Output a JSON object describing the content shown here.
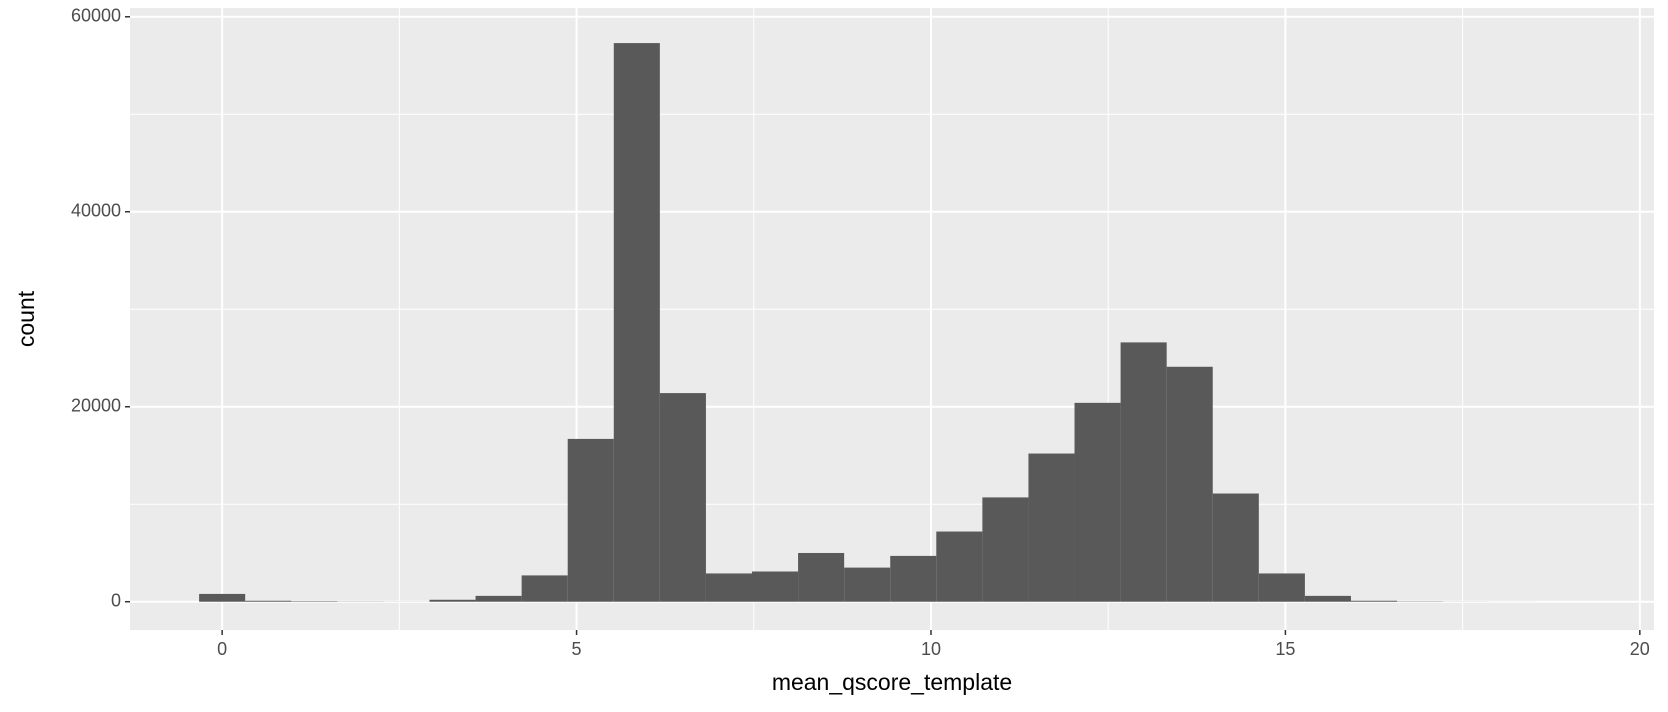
{
  "chart_data": {
    "type": "histogram",
    "x_label": "mean_qscore_template",
    "y_label": "count",
    "bins": [
      -0.325,
      0.325,
      0.975,
      1.625,
      2.275,
      2.925,
      3.575,
      4.225,
      4.875,
      5.525,
      6.175,
      6.825,
      7.475,
      8.125,
      8.775,
      9.425,
      10.075,
      10.725,
      11.375,
      12.025,
      12.675,
      13.325,
      13.975,
      14.625,
      15.275,
      15.925,
      16.575,
      17.225,
      17.875,
      18.525,
      19.175
    ],
    "values": [
      800,
      100,
      50,
      20,
      10,
      200,
      600,
      2700,
      16700,
      57300,
      21400,
      2900,
      3100,
      5000,
      3500,
      4700,
      7200,
      10700,
      15200,
      20400,
      26600,
      24100,
      11100,
      2900,
      600,
      100,
      30,
      10,
      5,
      2
    ],
    "color": "#595959",
    "xlim": [
      -1.3,
      20.2
    ],
    "xticks": [
      0,
      5,
      10,
      15,
      20
    ],
    "ylim": [
      -2900,
      60900
    ],
    "yticks": [
      0,
      20000,
      40000,
      60000
    ],
    "grid": true
  }
}
